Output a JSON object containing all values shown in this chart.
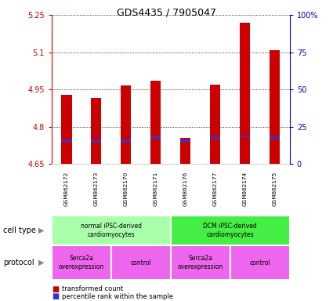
{
  "title": "GDS4435 / 7905047",
  "samples": [
    "GSM862172",
    "GSM862173",
    "GSM862170",
    "GSM862171",
    "GSM862176",
    "GSM862177",
    "GSM862174",
    "GSM862175"
  ],
  "transformed_counts": [
    4.93,
    4.915,
    4.965,
    4.985,
    4.755,
    4.97,
    5.22,
    5.11
  ],
  "percentile_ranks": [
    15,
    15,
    15,
    17,
    15,
    17,
    18,
    17
  ],
  "ylim_left": [
    4.65,
    5.25
  ],
  "ylim_right": [
    0,
    100
  ],
  "yticks_left": [
    4.65,
    4.8,
    4.95,
    5.1,
    5.25
  ],
  "ytick_labels_left": [
    "4.65",
    "4.8",
    "4.95",
    "5.1",
    "5.25"
  ],
  "yticks_right": [
    0,
    25,
    50,
    75,
    100
  ],
  "ytick_labels_right": [
    "0",
    "25",
    "50",
    "75",
    "100%"
  ],
  "bar_color_red": "#cc0000",
  "bar_color_blue": "#3333cc",
  "left_axis_color": "#cc0000",
  "right_axis_color": "#0000cc",
  "cell_type_groups": [
    {
      "label": "normal iPSC-derived\ncardiomyocytes",
      "start": 0,
      "end": 4,
      "color": "#aaffaa"
    },
    {
      "label": "DCM iPSC-derived\ncardiomyocytes",
      "start": 4,
      "end": 8,
      "color": "#44ee44"
    }
  ],
  "protocol_groups": [
    {
      "label": "Serca2a\noverexpression",
      "start": 0,
      "end": 2,
      "color": "#ee66ee"
    },
    {
      "label": "control",
      "start": 2,
      "end": 4,
      "color": "#ee66ee"
    },
    {
      "label": "Serca2a\noverexpression",
      "start": 4,
      "end": 6,
      "color": "#ee66ee"
    },
    {
      "label": "control",
      "start": 6,
      "end": 8,
      "color": "#ee66ee"
    }
  ],
  "cell_type_label": "cell type",
  "protocol_label": "protocol",
  "legend_red_label": "transformed count",
  "legend_blue_label": "percentile rank within the sample",
  "bar_width": 0.35,
  "base_value": 4.65,
  "blue_bar_height": 0.008
}
